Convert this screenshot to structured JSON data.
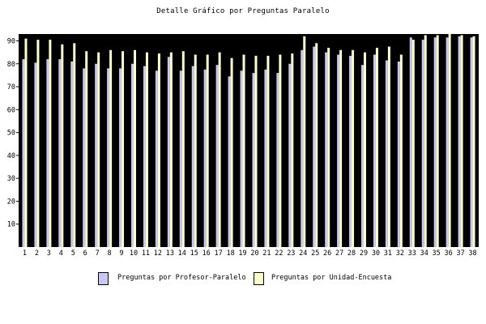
{
  "chart_data": {
    "type": "bar",
    "title": "Detalle Gráfico por Preguntas Paralelo",
    "xlabel": "",
    "ylabel": "",
    "ylim": [
      0,
      93
    ],
    "y_ticks": [
      10,
      20,
      30,
      40,
      50,
      60,
      70,
      80,
      90
    ],
    "grid": false,
    "legend_position": "bottom",
    "categories": [
      "1",
      "2",
      "3",
      "4",
      "5",
      "6",
      "7",
      "8",
      "9",
      "10",
      "11",
      "12",
      "13",
      "14",
      "15",
      "16",
      "17",
      "18",
      "19",
      "20",
      "21",
      "22",
      "23",
      "24",
      "25",
      "26",
      "27",
      "28",
      "29",
      "30",
      "31",
      "32",
      "33",
      "34",
      "35",
      "36",
      "37",
      "38"
    ],
    "series": [
      {
        "name": "Preguntas por Profesor-Paralelo",
        "color": "#c8c8f5",
        "values": [
          82,
          80.5,
          82,
          82,
          81,
          78,
          80,
          78,
          78,
          80,
          79,
          77,
          83,
          77,
          79,
          77.5,
          79.5,
          74.5,
          77,
          76,
          77.5,
          76,
          80,
          86,
          87.5,
          85,
          84,
          83.5,
          79.5,
          84,
          81.5,
          81,
          91.5,
          90.5,
          91.5,
          91.5,
          92,
          91.5
        ]
      },
      {
        "name": "Preguntas por Unidad-Encuesta",
        "color": "#ffffc8",
        "values": [
          91,
          90.5,
          90.5,
          88.5,
          89,
          85.5,
          85,
          86,
          85.5,
          86,
          85,
          84.5,
          85,
          85.5,
          84,
          84,
          85,
          82.5,
          84,
          83.5,
          83.5,
          84,
          84.5,
          92,
          89,
          87,
          86,
          86,
          85,
          87,
          87.5,
          84,
          90.5,
          92.5,
          92.5,
          93,
          92.5,
          92
        ]
      }
    ],
    "plot_background": "#000000"
  }
}
